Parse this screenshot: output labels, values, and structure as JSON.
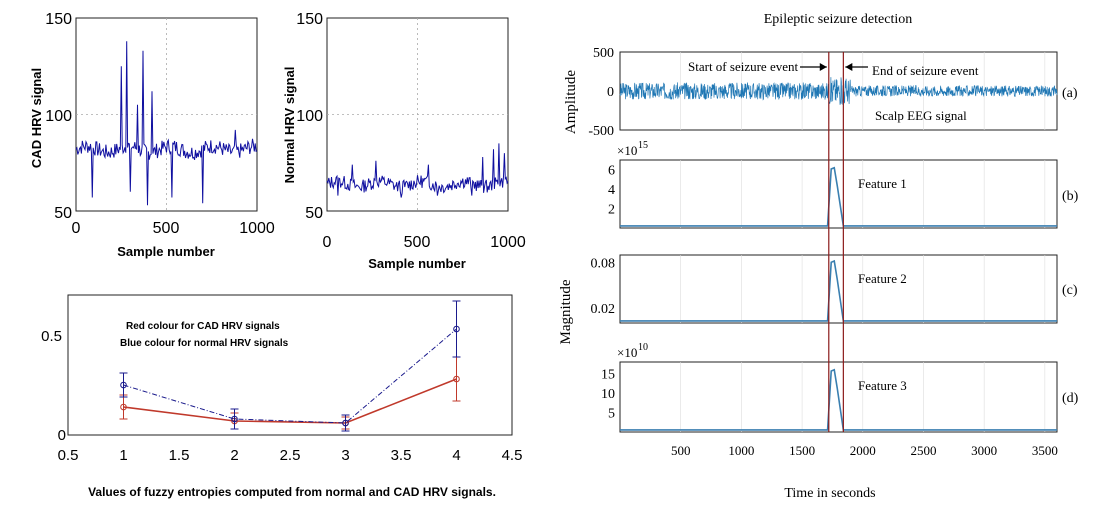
{
  "colors": {
    "hrv": "#1010a0",
    "eeg": "#1f77b4",
    "feature": "#3a7fb0",
    "marker": "#8b1a1a",
    "cad_line": "#c0392b",
    "normal_line": "#1a1a8c",
    "grid": "#aaaaaa"
  },
  "chart_data": [
    {
      "id": "cad",
      "type": "line",
      "ylabel": "CAD HRV signal",
      "xlabel": "Sample number",
      "xlim": [
        0,
        1000
      ],
      "ylim": [
        50,
        150
      ],
      "xticks": [
        "0",
        "500",
        "1000"
      ],
      "yticks": [
        "50",
        "100",
        "150"
      ],
      "grid": true,
      "baseline": 82,
      "noise": 4,
      "spikes_up": [
        [
          250,
          125
        ],
        [
          280,
          138
        ],
        [
          300,
          120
        ],
        [
          340,
          105
        ],
        [
          370,
          133
        ],
        [
          420,
          112
        ],
        [
          880,
          92
        ]
      ],
      "spikes_down": [
        [
          90,
          57
        ],
        [
          300,
          60
        ],
        [
          395,
          53
        ],
        [
          530,
          57
        ],
        [
          700,
          54
        ]
      ]
    },
    {
      "id": "normal",
      "type": "line",
      "ylabel": "Normal HRV signal",
      "xlabel": "Sample number",
      "xlim": [
        0,
        1000
      ],
      "ylim": [
        50,
        150
      ],
      "xticks": [
        "0",
        "500",
        "1000"
      ],
      "yticks": [
        "50",
        "100",
        "150"
      ],
      "grid": true,
      "baseline": 64,
      "noise": 3.5,
      "spikes_up": [
        [
          140,
          74
        ],
        [
          270,
          76
        ],
        [
          560,
          74
        ],
        [
          860,
          78
        ],
        [
          920,
          82
        ],
        [
          950,
          85
        ],
        [
          980,
          80
        ]
      ],
      "spikes_down": [
        [
          60,
          58
        ],
        [
          410,
          57
        ],
        [
          610,
          58
        ],
        [
          800,
          58
        ]
      ]
    },
    {
      "id": "entropy",
      "type": "line",
      "xlabel": "Values of fuzzy entropies computed from normal and CAD HRV signals.",
      "xlim": [
        0.5,
        4.5
      ],
      "ylim": [
        0,
        0.7
      ],
      "xticks": [
        "0.5",
        "1",
        "1.5",
        "2",
        "2.5",
        "3",
        "3.5",
        "4",
        "4.5"
      ],
      "yticks": [
        "0",
        "0.5"
      ],
      "grid": false,
      "annotations": [
        "Red colour for CAD HRV signals",
        "Blue colour for normal HRV signals"
      ],
      "x": [
        1,
        2,
        3,
        4
      ],
      "series": [
        {
          "color": "red",
          "values": [
            0.14,
            0.07,
            0.06,
            0.28
          ],
          "errors": [
            0.06,
            0.04,
            0.03,
            0.11
          ]
        },
        {
          "color": "blue",
          "values": [
            0.25,
            0.08,
            0.06,
            0.53
          ],
          "errors": [
            0.06,
            0.05,
            0.04,
            0.14
          ]
        }
      ]
    },
    {
      "id": "eeg",
      "type": "line",
      "title": "Epileptic seizure detection",
      "xlabel": "Time in seconds",
      "xlim": [
        0,
        3600
      ],
      "xticks": [
        "500",
        "1000",
        "1500",
        "2000",
        "2500",
        "3000",
        "3500"
      ],
      "seizure_start": 1720,
      "seizure_end": 1840,
      "marker_labels": {
        "start": "Start of seizure event",
        "end": "End of seizure event"
      },
      "panels": [
        {
          "id": "a",
          "tag": "(a)",
          "ylabel": "Amplitude",
          "label": "Scalp EEG signal",
          "ylim": [
            -500,
            500
          ],
          "yticks": [
            "500",
            "0",
            "-500"
          ],
          "kind": "eeg"
        },
        {
          "id": "b",
          "tag": "(b)",
          "label": "Feature 1",
          "exponent": "×10",
          "exponent_power": "15",
          "ylim": [
            0,
            7
          ],
          "yticks": [
            "6",
            "4",
            "2"
          ],
          "yvals": [
            6,
            4,
            2
          ],
          "peak": 6.2,
          "kind": "feature"
        },
        {
          "id": "c",
          "tag": "(c)",
          "label": "Feature 2",
          "ylim": [
            0,
            0.09
          ],
          "yticks": [
            "0.08",
            "0.02"
          ],
          "yvals": [
            0.08,
            0.02
          ],
          "peak": 0.082,
          "kind": "feature"
        },
        {
          "id": "d",
          "tag": "(d)",
          "label": "Feature 3",
          "exponent": "×10",
          "exponent_power": "10",
          "ylim": [
            0,
            18
          ],
          "yticks": [
            "15",
            "10",
            "5"
          ],
          "yvals": [
            15,
            10,
            5
          ],
          "peak": 16,
          "kind": "feature"
        }
      ],
      "shared_ylabel": "Magnitude"
    }
  ]
}
